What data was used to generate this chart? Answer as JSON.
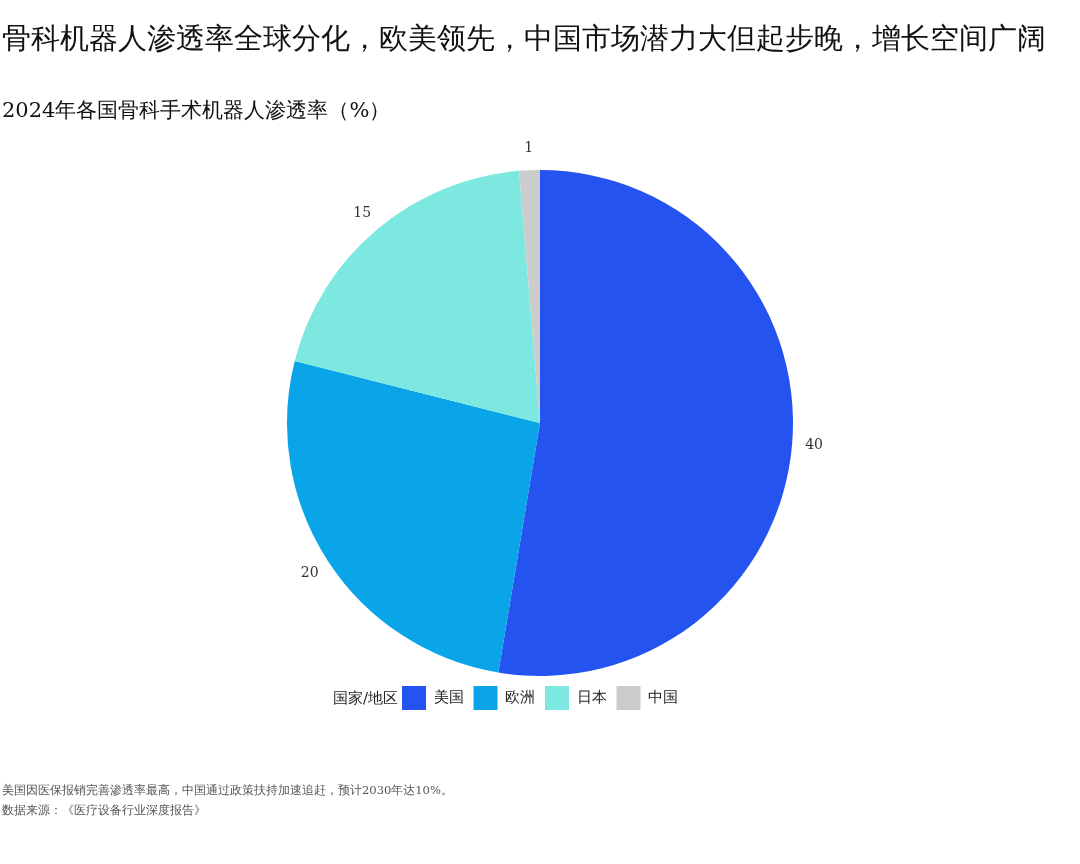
{
  "chart_data": {
    "type": "pie",
    "title": "骨科机器人渗透率全球分化，欧美领先，中国市场潜力大但起步晚，增长空间广阔",
    "subtitle": "2024年各国骨科手术机器人渗透率（%）",
    "categories": [
      "美国",
      "欧洲",
      "日本",
      "中国"
    ],
    "values": [
      40,
      20,
      15,
      1
    ],
    "colors": [
      "#2553f0",
      "#0aa5e8",
      "#7de8e0",
      "#cccccc"
    ],
    "data_labels": true,
    "legend": "bottom",
    "legend_title": "国家/地区",
    "annotations": [
      "美国因医保报销完善渗透率最高，中国通过政策扶持加速追赶，预计2030年达10%。",
      "数据来源：《医疗设备行业深度报告》"
    ]
  }
}
